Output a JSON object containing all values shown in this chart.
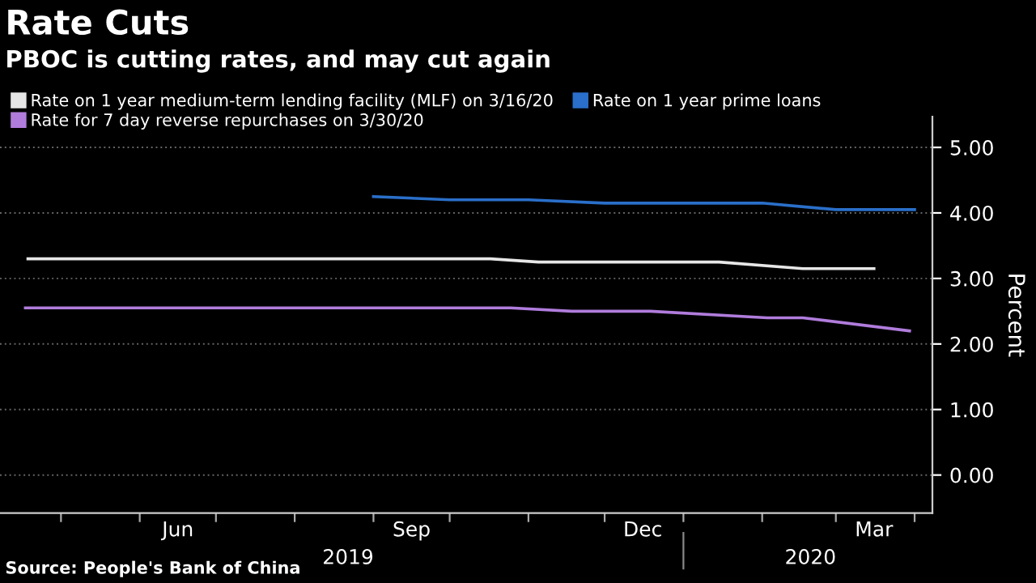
{
  "chart_data": {
    "type": "line",
    "title": "Rate Cuts",
    "subtitle": "PBOC is cutting rates, and may cut again",
    "ylabel": "Percent",
    "series": [
      {
        "name": "Rate on 1 year medium-term lending facility (MLF) on 3/16/20",
        "color": "#e6e6e6",
        "x": [
          "2019-04-18",
          "2019-10-17",
          "2019-11-05",
          "2020-01-15",
          "2020-02-17",
          "2020-03-16"
        ],
        "values": [
          3.3,
          3.3,
          3.25,
          3.25,
          3.15,
          3.15
        ]
      },
      {
        "name": "Rate on 1 year prime loans",
        "color": "#2a6fc9",
        "x": [
          "2019-09-01",
          "2019-10-01",
          "2019-11-01",
          "2019-12-01",
          "2020-01-01",
          "2020-02-01",
          "2020-03-01",
          "2020-04-01"
        ],
        "values": [
          4.25,
          4.2,
          4.2,
          4.15,
          4.15,
          4.15,
          4.05,
          4.05
        ]
      },
      {
        "name": "Rate for 7 day reverse repurchases on 3/30/20",
        "color": "#b07cdc",
        "x": [
          "2019-04-17",
          "2019-10-25",
          "2019-11-18",
          "2019-12-19",
          "2020-02-03",
          "2020-02-17",
          "2020-03-30"
        ],
        "values": [
          2.55,
          2.55,
          2.5,
          2.5,
          2.4,
          2.4,
          2.2
        ]
      }
    ],
    "xlim": [
      "2019-04-07",
      "2020-04-08"
    ],
    "xticks": [
      {
        "value": "2019-05-01",
        "label": null
      },
      {
        "value": "2019-06-01",
        "label": null
      },
      {
        "value": "2019-07-01",
        "label": null
      },
      {
        "value": "2019-08-01",
        "label": null
      },
      {
        "value": "2019-09-01",
        "label": null
      },
      {
        "value": "2019-10-01",
        "label": null
      },
      {
        "value": "2019-11-01",
        "label": null
      },
      {
        "value": "2019-12-01",
        "label": null
      },
      {
        "value": "2020-01-01",
        "label": null
      },
      {
        "value": "2020-02-01",
        "label": null
      },
      {
        "value": "2020-03-01",
        "label": null
      },
      {
        "value": "2020-04-01",
        "label": null
      },
      {
        "value": "2019-06-16",
        "label": "Jun"
      },
      {
        "value": "2019-09-16",
        "label": "Sep"
      },
      {
        "value": "2019-12-16",
        "label": "Dec"
      },
      {
        "value": "2020-03-16",
        "label": "Mar"
      }
    ],
    "x2lim": [
      "2019-04-07",
      "2020-04-08"
    ],
    "x2ticks": [
      {
        "value": "2019-08-22",
        "label": "2019"
      },
      {
        "value": "2020-02-20",
        "label": "2020"
      }
    ],
    "ylim": [
      -0.58,
      5.47
    ],
    "yticks": [
      {
        "value": 0,
        "label": "0.00"
      },
      {
        "value": 1,
        "label": "1.00"
      },
      {
        "value": 2,
        "label": "2.00"
      },
      {
        "value": 3,
        "label": "3.00"
      },
      {
        "value": 4,
        "label": "4.00"
      },
      {
        "value": 5,
        "label": "5.00"
      }
    ],
    "grid": "y",
    "legend": "top left",
    "marker": "none",
    "line_style": "solid",
    "annotations": [
      "Source: People's Bank of China"
    ]
  }
}
